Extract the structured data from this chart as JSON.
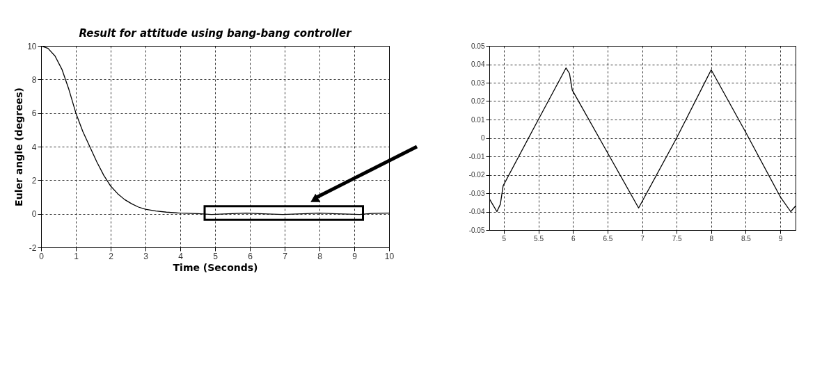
{
  "chart_data": [
    {
      "type": "line",
      "title": "Result for attitude using bang-bang controller",
      "xlabel": "Time (Seconds)",
      "ylabel": "Euler angle (degrees)",
      "series": [
        {
          "color": "#000000",
          "x": [
            0,
            0.2,
            0.4,
            0.6,
            0.8,
            1.0,
            1.2,
            1.4,
            1.6,
            1.8,
            2.0,
            2.2,
            2.4,
            2.6,
            2.8,
            3.0,
            3.3,
            3.6,
            4.0,
            4.5,
            4.9,
            5.5,
            5.9,
            6.5,
            6.95,
            7.5,
            8.0,
            8.5,
            9.15,
            9.5,
            10
          ],
          "values": [
            10,
            9.85,
            9.4,
            8.6,
            7.4,
            6.0,
            4.9,
            4.0,
            3.1,
            2.3,
            1.65,
            1.2,
            0.85,
            0.6,
            0.4,
            0.27,
            0.17,
            0.1,
            0.04,
            0.01,
            -0.04,
            0.01,
            0.04,
            -0.01,
            -0.04,
            0.0,
            0.04,
            0.0,
            -0.04,
            0.02,
            0.04
          ]
        }
      ],
      "xlim": [
        0,
        10
      ],
      "xticks": [
        0,
        1,
        2,
        3,
        4,
        5,
        6,
        7,
        8,
        9,
        10
      ],
      "ylim": [
        -2,
        10
      ],
      "yticks": [
        -2,
        0,
        2,
        4,
        6,
        8,
        10
      ],
      "grid": true,
      "line_style": "solid",
      "marker": "none"
    },
    {
      "type": "line",
      "series": [
        {
          "color": "#000000",
          "x": [
            4.79,
            4.9,
            4.95,
            4.99,
            5.5,
            5.9,
            5.95,
            5.99,
            6.5,
            6.95,
            7.5,
            8.0,
            8.5,
            9.0,
            9.15,
            9.22
          ],
          "values": [
            -0.033,
            -0.04,
            -0.036,
            -0.026,
            0.01,
            0.038,
            0.035,
            0.026,
            -0.008,
            -0.038,
            0.0,
            0.037,
            0.003,
            -0.032,
            -0.04,
            -0.037
          ]
        }
      ],
      "xlim": [
        4.79,
        9.22
      ],
      "xticks": [
        5,
        5.5,
        6,
        6.5,
        7,
        7.5,
        8,
        8.5,
        9
      ],
      "ylim": [
        -0.05,
        0.05
      ],
      "yticks": [
        -0.05,
        -0.04,
        -0.03,
        -0.02,
        -0.01,
        0,
        0.01,
        0.02,
        0.03,
        0.04,
        0.05
      ],
      "grid": true,
      "line_style": "solid",
      "marker": "none"
    }
  ]
}
